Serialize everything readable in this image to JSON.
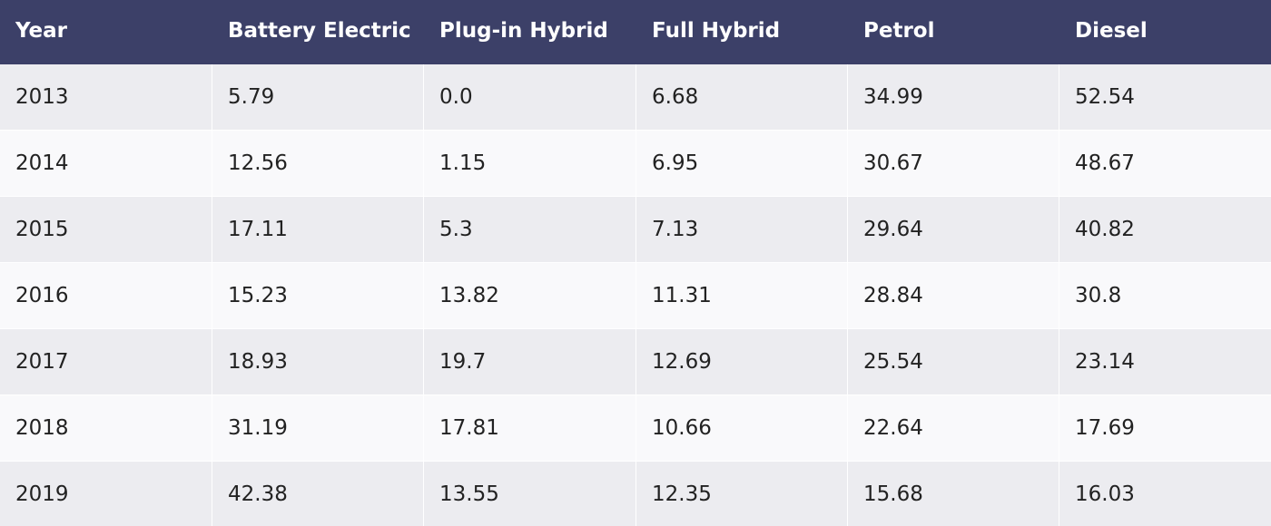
{
  "chart_data": {
    "type": "table",
    "columns": [
      "Year",
      "Battery Electric",
      "Plug-in Hybrid",
      "Full Hybrid",
      "Petrol",
      "Diesel"
    ],
    "rows": [
      [
        "2013",
        "5.79",
        "0.0",
        "6.68",
        "34.99",
        "52.54"
      ],
      [
        "2014",
        "12.56",
        "1.15",
        "6.95",
        "30.67",
        "48.67"
      ],
      [
        "2015",
        "17.11",
        "5.3",
        "7.13",
        "29.64",
        "40.82"
      ],
      [
        "2016",
        "15.23",
        "13.82",
        "11.31",
        "28.84",
        "30.8"
      ],
      [
        "2017",
        "18.93",
        "19.7",
        "12.69",
        "25.54",
        "23.14"
      ],
      [
        "2018",
        "31.19",
        "17.81",
        "10.66",
        "22.64",
        "17.69"
      ],
      [
        "2019",
        "42.38",
        "13.55",
        "12.35",
        "15.68",
        "16.03"
      ]
    ]
  },
  "colors": {
    "header_background": "#3c4068",
    "header_text": "#ffffff",
    "row_odd": "#ececf0",
    "row_even": "#f9f9fb"
  }
}
